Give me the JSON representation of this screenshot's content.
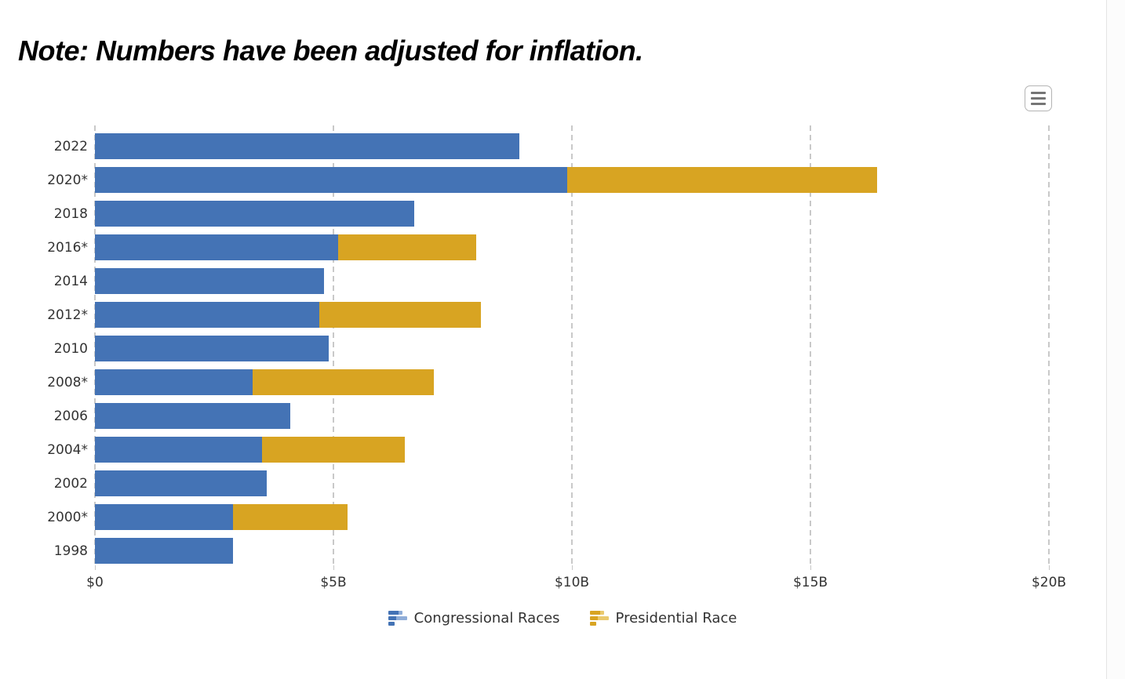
{
  "note": "Note: Numbers have been adjusted for inflation.",
  "export_menu": {
    "icon": "hamburger-menu-icon"
  },
  "colors": {
    "congressional": "#4473b5",
    "congressional_light": "#8fadd8",
    "presidential": "#d8a422",
    "presidential_light": "#e9c96e",
    "axis_text": "#333333",
    "gridline": "#c9c9c9"
  },
  "chart_data": {
    "type": "bar",
    "orientation": "horizontal",
    "stacked": true,
    "title": "",
    "xlabel": "",
    "ylabel": "",
    "unit": "billions of USD",
    "grid": "dashed vertical gridlines",
    "legend_position": "bottom center",
    "xlim": [
      0,
      20
    ],
    "x_ticks": [
      "$0",
      "$5B",
      "$10B",
      "$15B",
      "$20B"
    ],
    "x_tick_values": [
      0,
      5,
      10,
      15,
      20
    ],
    "categories": [
      "2022",
      "2020*",
      "2018",
      "2016*",
      "2014",
      "2012*",
      "2010",
      "2008*",
      "2006",
      "2004*",
      "2002",
      "2000*",
      "1998"
    ],
    "series": [
      {
        "name": "Congressional Races",
        "color": "#4473b5",
        "values": [
          8.9,
          9.9,
          6.7,
          5.1,
          4.8,
          4.7,
          4.9,
          3.3,
          4.1,
          3.5,
          3.6,
          2.9,
          2.9
        ]
      },
      {
        "name": "Presidential Race",
        "color": "#d8a422",
        "values": [
          0,
          6.5,
          0,
          2.9,
          0,
          3.4,
          0,
          3.8,
          0,
          3.0,
          0,
          2.4,
          0
        ]
      }
    ]
  }
}
